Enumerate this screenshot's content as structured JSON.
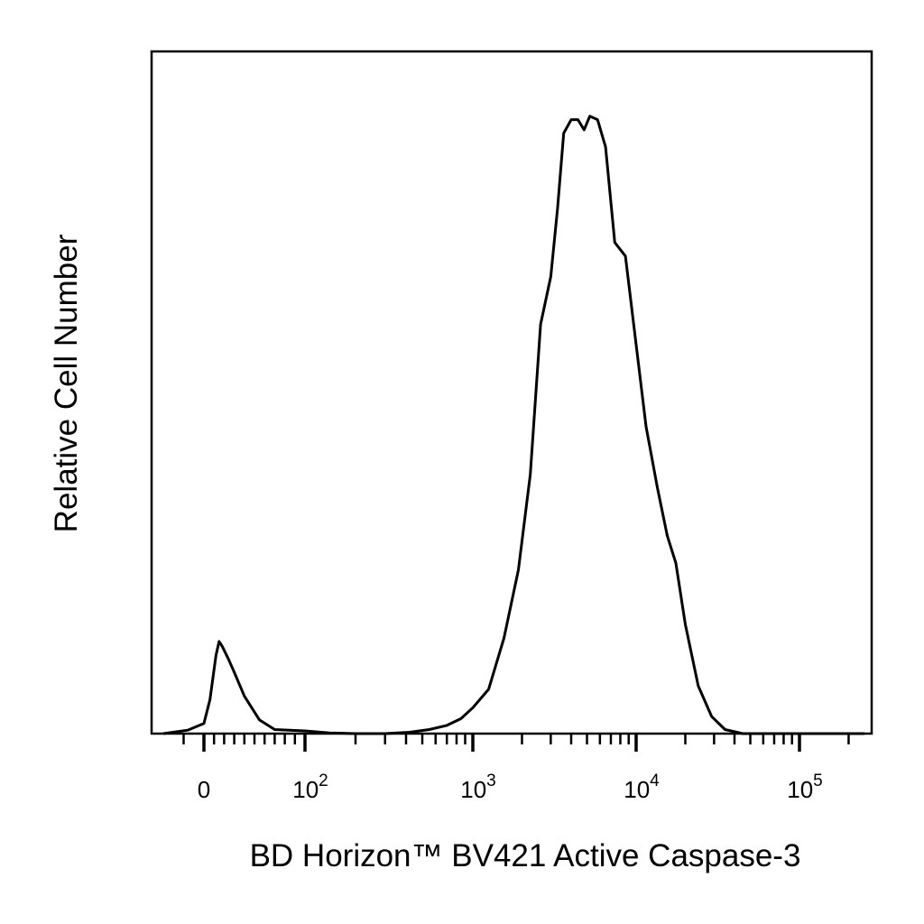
{
  "chart_data": {
    "type": "line",
    "subtype": "flow-cytometry-histogram",
    "xlabel": "BD Horizon™ BV421  Active Caspase-3",
    "ylabel": "Relative Cell Number",
    "x_scale": "biexponential",
    "y_ticks_shown": false,
    "grid": false,
    "legend": "none",
    "line_color": "#000000",
    "x_ticks": [
      {
        "value": 0,
        "label": "0",
        "base": "",
        "exp": ""
      },
      {
        "value": 100,
        "label": "10^2",
        "base": "10",
        "exp": "2"
      },
      {
        "value": 1000,
        "label": "10^3",
        "base": "10",
        "exp": "3"
      },
      {
        "value": 10000,
        "label": "10^4",
        "base": "10",
        "exp": "4"
      },
      {
        "value": 100000,
        "label": "10^5",
        "base": "10",
        "exp": "5"
      }
    ],
    "xlim": [
      -20,
      250000
    ],
    "ylim": [
      0,
      1
    ],
    "series": [
      {
        "points": [
          [
            -20,
            0.0
          ],
          [
            -8,
            0.005
          ],
          [
            0,
            0.015
          ],
          [
            6,
            0.05
          ],
          [
            12,
            0.115
          ],
          [
            15,
            0.135
          ],
          [
            18,
            0.128
          ],
          [
            24,
            0.11
          ],
          [
            30,
            0.09
          ],
          [
            40,
            0.055
          ],
          [
            55,
            0.02
          ],
          [
            70,
            0.006
          ],
          [
            100,
            0.004
          ],
          [
            140,
            0.001
          ],
          [
            200,
            0.0
          ],
          [
            300,
            0.0
          ],
          [
            420,
            0.002
          ],
          [
            550,
            0.006
          ],
          [
            700,
            0.012
          ],
          [
            850,
            0.022
          ],
          [
            1000,
            0.038
          ],
          [
            1250,
            0.065
          ],
          [
            1550,
            0.14
          ],
          [
            1900,
            0.24
          ],
          [
            2250,
            0.38
          ],
          [
            2600,
            0.6
          ],
          [
            3000,
            0.67
          ],
          [
            3300,
            0.77
          ],
          [
            3600,
            0.88
          ],
          [
            4000,
            0.9
          ],
          [
            4400,
            0.9
          ],
          [
            4800,
            0.885
          ],
          [
            5200,
            0.905
          ],
          [
            5800,
            0.9
          ],
          [
            6500,
            0.86
          ],
          [
            7400,
            0.72
          ],
          [
            8600,
            0.7
          ],
          [
            10000,
            0.57
          ],
          [
            11500,
            0.45
          ],
          [
            13500,
            0.36
          ],
          [
            15500,
            0.29
          ],
          [
            17500,
            0.25
          ],
          [
            20000,
            0.16
          ],
          [
            24000,
            0.07
          ],
          [
            29000,
            0.025
          ],
          [
            35000,
            0.006
          ],
          [
            45000,
            0.0
          ],
          [
            100000,
            0.0
          ],
          [
            250000,
            0.0
          ]
        ]
      }
    ]
  }
}
